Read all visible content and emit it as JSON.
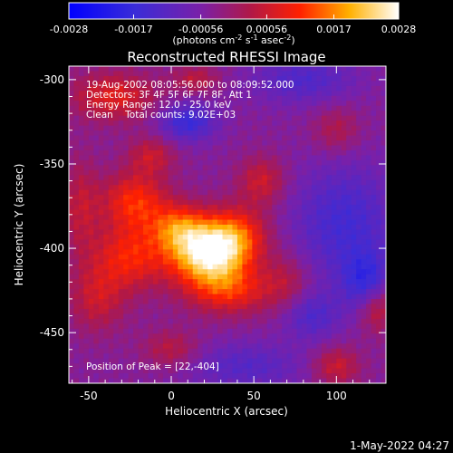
{
  "chart_data": {
    "type": "heatmap",
    "title": "Reconstructed RHESSI Image",
    "xlabel": "Heliocentric X (arcsec)",
    "ylabel": "Heliocentric Y (arcsec)",
    "xlim": [
      -62,
      130
    ],
    "ylim": [
      -480,
      -292
    ],
    "xticks": [
      -50,
      0,
      50,
      100
    ],
    "yticks": [
      -300,
      -350,
      -400,
      -450
    ],
    "colorbar": {
      "colormap": "blue-purple-red-yellow-white",
      "range": [
        -0.0028,
        0.0028
      ],
      "ticks": [
        "-0.0028",
        "-0.0017",
        "-0.00056",
        "0.00056",
        "0.0017",
        "0.0028"
      ],
      "units_prefix": "(photons cm",
      "units_sup1": "-2",
      "units_mid1": " s",
      "units_sup2": "-1",
      "units_mid2": " asec",
      "units_sup3": "-2",
      "units_suffix": ")"
    },
    "annotations": {
      "time": "19-Aug-2002 08:05:56.000 to 08:09:52.000",
      "detectors": "Detectors: 3F 4F 5F 6F 7F 8F, Att 1",
      "energy": "Energy Range: 12.0 - 25.0 keV",
      "clean": "Clean    Total counts: 9.02E+03",
      "peak": "Position of Peak = [22,-404]"
    },
    "peak": {
      "x": 22,
      "y": -404,
      "value": 0.0028
    },
    "sources": [
      {
        "x": 22,
        "y": -404,
        "sx": 16,
        "sy": 12,
        "amp": 0.0028
      },
      {
        "x": 5,
        "y": -388,
        "sx": 12,
        "sy": 10,
        "amp": 0.0016
      },
      {
        "x": 38,
        "y": -392,
        "sx": 14,
        "sy": 12,
        "amp": 0.0016
      },
      {
        "x": 35,
        "y": -425,
        "sx": 18,
        "sy": 10,
        "amp": 0.0014
      },
      {
        "x": -22,
        "y": -372,
        "sx": 14,
        "sy": 12,
        "amp": 0.0015
      },
      {
        "x": -25,
        "y": -405,
        "sx": 16,
        "sy": 14,
        "amp": 0.0014
      },
      {
        "x": -12,
        "y": -345,
        "sx": 10,
        "sy": 8,
        "amp": 0.0009
      },
      {
        "x": 55,
        "y": -360,
        "sx": 10,
        "sy": 10,
        "amp": 0.001
      },
      {
        "x": -45,
        "y": -430,
        "sx": 12,
        "sy": 14,
        "amp": 0.0009
      },
      {
        "x": 0,
        "y": -460,
        "sx": 12,
        "sy": 8,
        "amp": 0.0008
      },
      {
        "x": 70,
        "y": -420,
        "sx": 10,
        "sy": 12,
        "amp": 0.0007
      },
      {
        "x": -35,
        "y": -310,
        "sx": 18,
        "sy": 10,
        "amp": 0.0012
      },
      {
        "x": 15,
        "y": -300,
        "sx": 10,
        "sy": 6,
        "amp": 0.0008
      },
      {
        "x": 100,
        "y": -330,
        "sx": 10,
        "sy": 10,
        "amp": 0.0007
      },
      {
        "x": 125,
        "y": -435,
        "sx": 8,
        "sy": 10,
        "amp": 0.0011
      },
      {
        "x": 100,
        "y": -470,
        "sx": 10,
        "sy": 8,
        "amp": 0.001
      },
      {
        "x": -55,
        "y": -375,
        "sx": 8,
        "sy": 20,
        "amp": 0.0008
      },
      {
        "x": 105,
        "y": -385,
        "sx": 22,
        "sy": 25,
        "amp": -0.0011
      },
      {
        "x": 10,
        "y": -325,
        "sx": 12,
        "sy": 8,
        "amp": -0.0013
      },
      {
        "x": 80,
        "y": -300,
        "sx": 22,
        "sy": 10,
        "amp": -0.0009
      },
      {
        "x": 45,
        "y": -470,
        "sx": 25,
        "sy": 10,
        "amp": -0.0008
      },
      {
        "x": 118,
        "y": -420,
        "sx": 10,
        "sy": 12,
        "amp": -0.0012
      },
      {
        "x": 85,
        "y": -440,
        "sx": 12,
        "sy": 10,
        "amp": -0.0009
      }
    ]
  },
  "footer": {
    "timestamp": "1-May-2022 04:27"
  }
}
